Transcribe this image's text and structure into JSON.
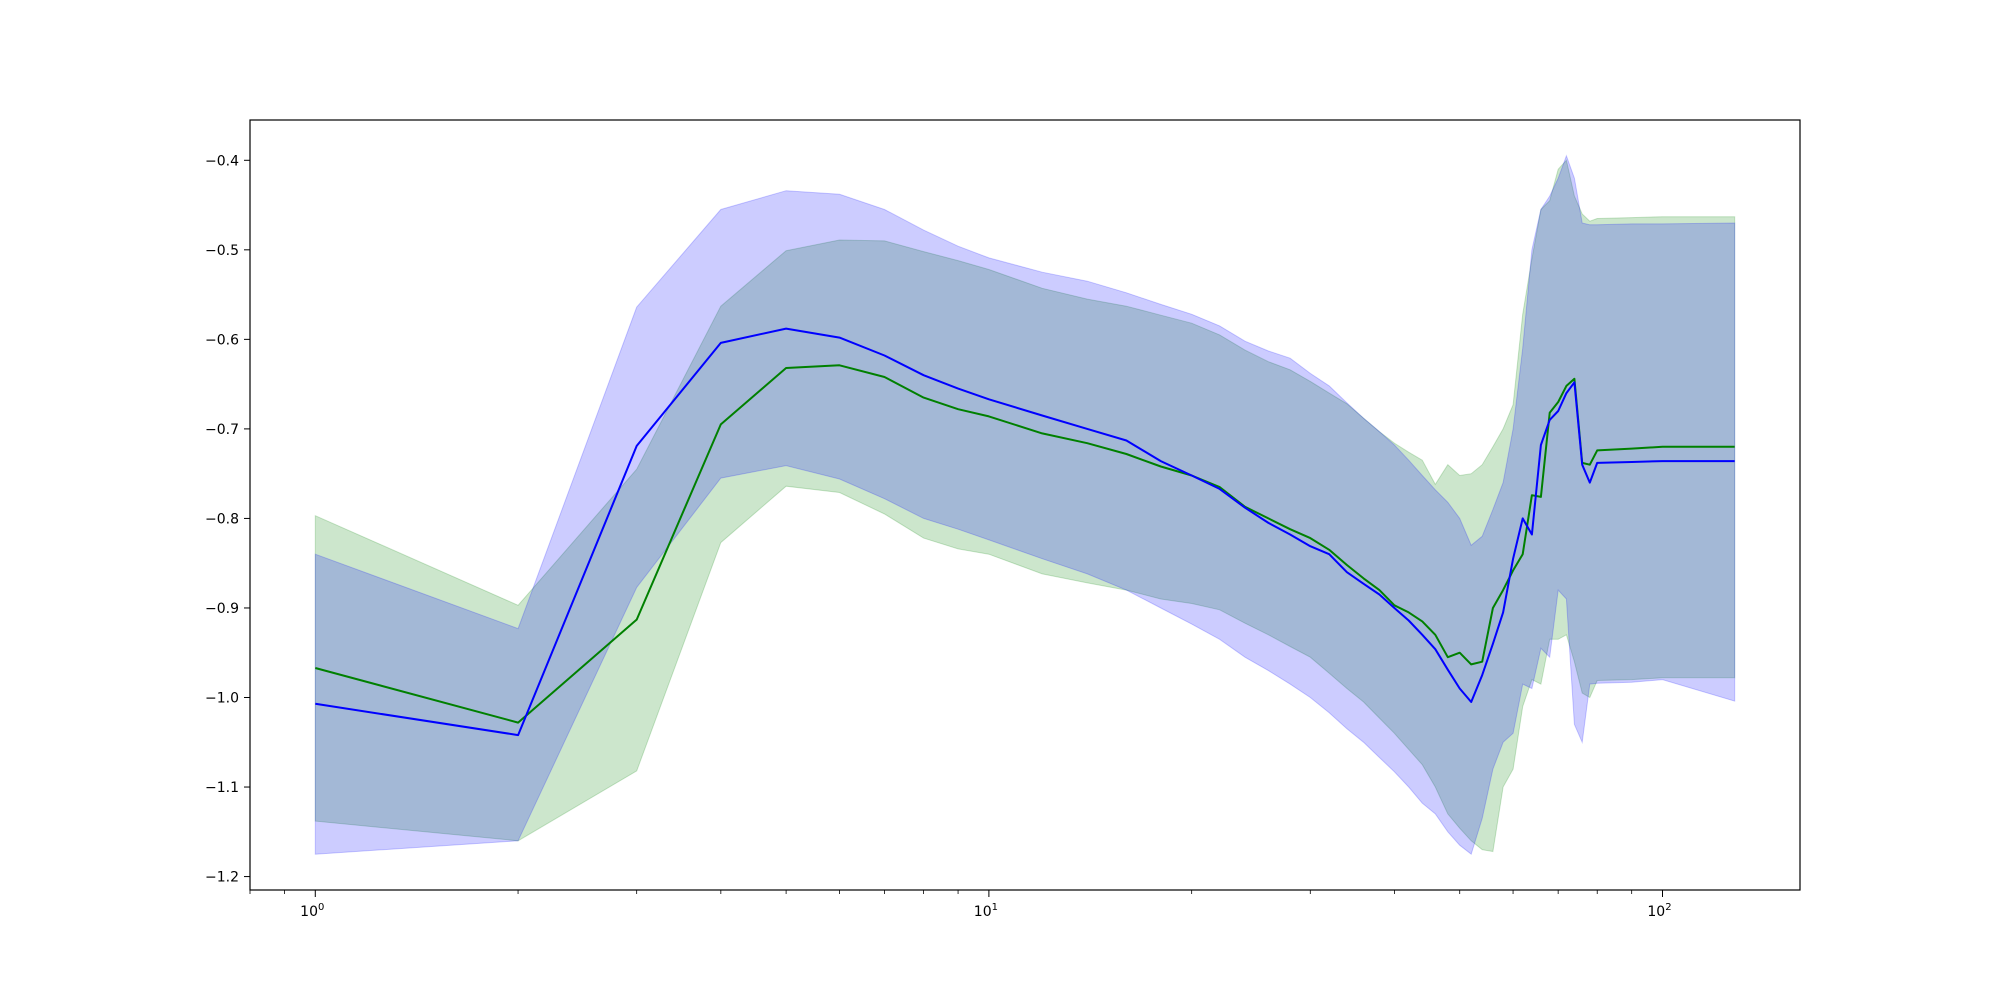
{
  "chart_data": {
    "type": "line",
    "title": "",
    "xlabel": "",
    "ylabel": "",
    "xscale": "log",
    "xlim": [
      0.8,
      160
    ],
    "ylim": [
      -1.215,
      -0.355
    ],
    "grid": false,
    "xticks": [
      {
        "value": 1,
        "base": "10",
        "exp": "0"
      },
      {
        "value": 10,
        "base": "10",
        "exp": "1"
      },
      {
        "value": 100,
        "base": "10",
        "exp": "2"
      }
    ],
    "yticks": [
      -0.4,
      -0.5,
      -0.6,
      -0.7,
      -0.8,
      -0.9,
      -1.0,
      -1.1,
      -1.2
    ],
    "ytick_labels": [
      "−0.4",
      "−0.5",
      "−0.6",
      "−0.7",
      "−0.8",
      "−0.9",
      "−1.0",
      "−1.1",
      "−1.2"
    ],
    "series": [
      {
        "color": "#008000",
        "band_color": "#008000",
        "band_opacity": 0.2,
        "x": [
          1,
          2,
          3,
          4,
          5,
          6,
          7,
          8,
          9,
          10,
          12,
          14,
          16,
          18,
          20,
          22,
          24,
          26,
          28,
          30,
          32,
          34,
          36,
          38,
          40,
          42,
          44,
          46,
          48,
          50,
          52,
          54,
          56,
          58,
          60,
          62,
          64,
          66,
          68,
          70,
          72,
          74,
          76,
          78,
          80,
          90,
          100,
          128
        ],
        "mean": [
          -0.967,
          -1.028,
          -0.913,
          -0.695,
          -0.632,
          -0.629,
          -0.642,
          -0.665,
          -0.678,
          -0.686,
          -0.705,
          -0.716,
          -0.728,
          -0.742,
          -0.752,
          -0.765,
          -0.787,
          -0.8,
          -0.812,
          -0.822,
          -0.835,
          -0.852,
          -0.867,
          -0.88,
          -0.897,
          -0.905,
          -0.915,
          -0.93,
          -0.955,
          -0.95,
          -0.963,
          -0.96,
          -0.9,
          -0.88,
          -0.858,
          -0.84,
          -0.774,
          -0.776,
          -0.682,
          -0.67,
          -0.652,
          -0.644,
          -0.738,
          -0.74,
          -0.724,
          -0.722,
          -0.72,
          -0.72
        ],
        "upper": [
          -0.797,
          -0.897,
          -0.745,
          -0.563,
          -0.501,
          -0.489,
          -0.49,
          -0.502,
          -0.512,
          -0.522,
          -0.543,
          -0.555,
          -0.563,
          -0.573,
          -0.582,
          -0.595,
          -0.612,
          -0.625,
          -0.634,
          -0.647,
          -0.66,
          -0.672,
          -0.688,
          -0.703,
          -0.716,
          -0.726,
          -0.735,
          -0.762,
          -0.74,
          -0.752,
          -0.75,
          -0.74,
          -0.72,
          -0.7,
          -0.673,
          -0.572,
          -0.51,
          -0.455,
          -0.445,
          -0.41,
          -0.4,
          -0.44,
          -0.46,
          -0.468,
          -0.465,
          -0.464,
          -0.463,
          -0.463
        ],
        "lower": [
          -1.138,
          -1.16,
          -1.082,
          -0.827,
          -0.764,
          -0.771,
          -0.795,
          -0.822,
          -0.834,
          -0.84,
          -0.862,
          -0.872,
          -0.88,
          -0.89,
          -0.895,
          -0.902,
          -0.917,
          -0.93,
          -0.943,
          -0.955,
          -0.973,
          -0.99,
          -1.005,
          -1.023,
          -1.04,
          -1.058,
          -1.075,
          -1.1,
          -1.13,
          -1.146,
          -1.16,
          -1.17,
          -1.172,
          -1.1,
          -1.08,
          -1.01,
          -0.98,
          -0.985,
          -0.935,
          -0.935,
          -0.93,
          -0.96,
          -0.995,
          -1.0,
          -0.981,
          -0.98,
          -0.978,
          -0.978
        ]
      },
      {
        "color": "#0000ff",
        "band_color": "#0000ff",
        "band_opacity": 0.2,
        "x": [
          1,
          2,
          3,
          4,
          5,
          6,
          7,
          8,
          9,
          10,
          12,
          14,
          16,
          18,
          20,
          22,
          24,
          26,
          28,
          30,
          32,
          34,
          36,
          38,
          40,
          42,
          44,
          46,
          48,
          50,
          52,
          54,
          56,
          58,
          60,
          62,
          64,
          66,
          68,
          70,
          72,
          74,
          76,
          78,
          80,
          90,
          100,
          128
        ],
        "mean": [
          -1.007,
          -1.042,
          -0.719,
          -0.604,
          -0.588,
          -0.598,
          -0.618,
          -0.64,
          -0.655,
          -0.667,
          -0.685,
          -0.7,
          -0.713,
          -0.736,
          -0.752,
          -0.767,
          -0.788,
          -0.805,
          -0.818,
          -0.831,
          -0.84,
          -0.86,
          -0.873,
          -0.885,
          -0.9,
          -0.914,
          -0.93,
          -0.946,
          -0.969,
          -0.99,
          -1.005,
          -0.975,
          -0.94,
          -0.905,
          -0.845,
          -0.8,
          -0.818,
          -0.718,
          -0.69,
          -0.68,
          -0.66,
          -0.648,
          -0.74,
          -0.76,
          -0.738,
          -0.737,
          -0.736,
          -0.736
        ],
        "upper": [
          -0.84,
          -0.923,
          -0.564,
          -0.455,
          -0.434,
          -0.438,
          -0.455,
          -0.478,
          -0.496,
          -0.509,
          -0.525,
          -0.535,
          -0.548,
          -0.561,
          -0.572,
          -0.585,
          -0.602,
          -0.613,
          -0.621,
          -0.638,
          -0.652,
          -0.671,
          -0.688,
          -0.703,
          -0.718,
          -0.735,
          -0.752,
          -0.768,
          -0.782,
          -0.8,
          -0.83,
          -0.82,
          -0.79,
          -0.76,
          -0.7,
          -0.61,
          -0.5,
          -0.455,
          -0.44,
          -0.42,
          -0.395,
          -0.42,
          -0.47,
          -0.472,
          -0.472,
          -0.471,
          -0.471,
          -0.47
        ],
        "lower": [
          -1.175,
          -1.16,
          -0.877,
          -0.755,
          -0.741,
          -0.756,
          -0.778,
          -0.8,
          -0.812,
          -0.824,
          -0.845,
          -0.862,
          -0.88,
          -0.9,
          -0.918,
          -0.935,
          -0.955,
          -0.97,
          -0.985,
          -1.0,
          -1.017,
          -1.035,
          -1.05,
          -1.067,
          -1.083,
          -1.1,
          -1.118,
          -1.13,
          -1.15,
          -1.165,
          -1.175,
          -1.135,
          -1.08,
          -1.05,
          -1.04,
          -0.985,
          -0.99,
          -0.945,
          -0.955,
          -0.88,
          -0.89,
          -1.03,
          -1.05,
          -0.985,
          -0.984,
          -0.983,
          -0.98,
          -1.004
        ]
      }
    ]
  }
}
